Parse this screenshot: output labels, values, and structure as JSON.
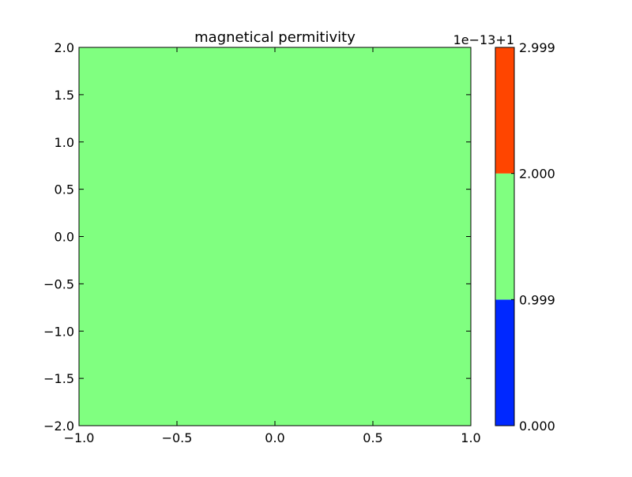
{
  "chart_data": {
    "type": "heatmap",
    "title": "magnetical permitivity",
    "xlabel": "",
    "ylabel": "",
    "xlim": [
      -1.0,
      1.0
    ],
    "ylim": [
      -2.0,
      2.0
    ],
    "x_ticks": [
      -1.0,
      -0.5,
      0.0,
      0.5,
      1.0
    ],
    "x_tick_labels": [
      "−1.0",
      "−0.5",
      "0.0",
      "0.5",
      "1.0"
    ],
    "y_ticks": [
      2.0,
      1.5,
      1.0,
      0.5,
      0.0,
      -0.5,
      -1.0,
      -1.5,
      -2.0
    ],
    "y_tick_labels": [
      "2.0",
      "1.5",
      "1.0",
      "0.5",
      "0.0",
      "−0.5",
      "−1.0",
      "−1.5",
      "−2.0"
    ],
    "grid": false,
    "field": {
      "x_range": [
        -1.0,
        1.0
      ],
      "y_range": [
        -2.0,
        2.0
      ],
      "level_index": 1,
      "color": "#80ff80"
    },
    "colorbar": {
      "offset_label": "1e−13+1",
      "levels": [
        {
          "from": "0.000",
          "to": "0.999",
          "color": "#0028ff"
        },
        {
          "from": "0.999",
          "to": "2.000",
          "color": "#80ff80"
        },
        {
          "from": "2.000",
          "to": "2.999",
          "color": "#ff4500"
        }
      ],
      "tick_labels": [
        "0.000",
        "0.999",
        "2.000",
        "2.999"
      ]
    }
  }
}
